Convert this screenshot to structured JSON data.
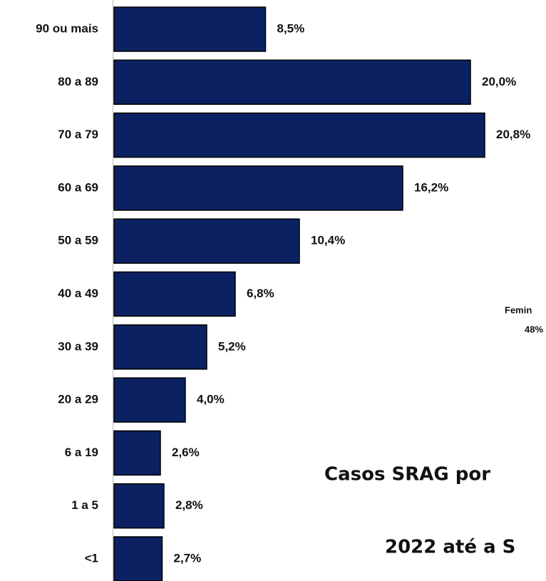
{
  "chart_data": {
    "type": "bar",
    "orientation": "horizontal",
    "categories": [
      "90 ou mais",
      "80 a 89",
      "70 a 79",
      "60 a 69",
      "50 a 59",
      "40 a 49",
      "30 a 39",
      "20 a 29",
      "6 a 19",
      "1 a 5",
      "<1"
    ],
    "values": [
      8.5,
      20.0,
      20.8,
      16.2,
      10.4,
      6.8,
      5.2,
      4.0,
      2.6,
      2.8,
      2.7
    ],
    "value_labels": [
      "8,5%",
      "20,0%",
      "20,8%",
      "16,2%",
      "10,4%",
      "6,8%",
      "5,2%",
      "4,0%",
      "2,6%",
      "2,8%",
      "2,7%"
    ],
    "color": "#0b2161",
    "xlim": [
      0,
      24
    ],
    "annotations": [
      "Femin",
      "48%",
      "Casos SRAG por",
      "2022 até a S"
    ]
  }
}
